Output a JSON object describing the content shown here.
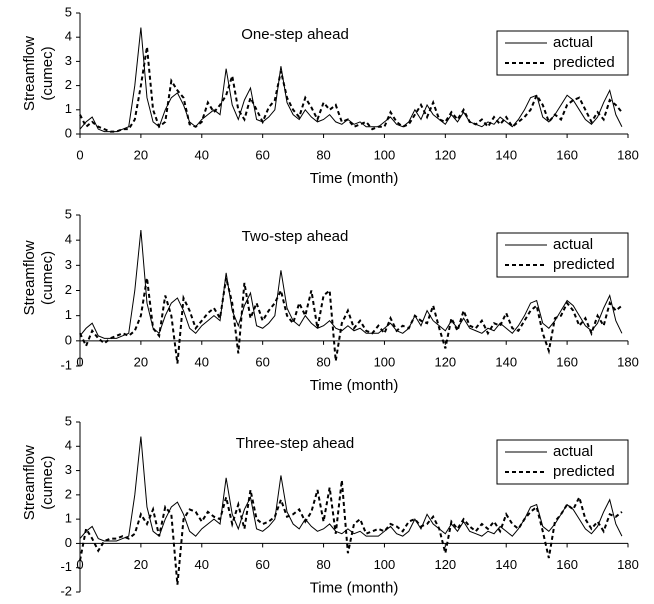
{
  "chart_data": [
    {
      "type": "line",
      "title": "One-step ahead",
      "x_label": "Time (month)",
      "y_label": [
        "Streamflow",
        "(cumec)"
      ],
      "x": [
        0,
        2,
        4,
        6,
        8,
        10,
        12,
        14,
        16,
        18,
        20,
        22,
        24,
        26,
        28,
        30,
        32,
        34,
        36,
        38,
        40,
        42,
        44,
        46,
        48,
        50,
        52,
        54,
        56,
        58,
        60,
        62,
        64,
        66,
        68,
        70,
        72,
        74,
        76,
        78,
        80,
        82,
        84,
        86,
        88,
        90,
        92,
        94,
        96,
        98,
        100,
        102,
        104,
        106,
        108,
        110,
        112,
        114,
        116,
        118,
        120,
        122,
        124,
        126,
        128,
        130,
        132,
        134,
        136,
        138,
        140,
        142,
        144,
        146,
        148,
        150,
        152,
        154,
        156,
        158,
        160,
        162,
        164,
        166,
        168,
        170,
        172,
        174,
        176,
        178
      ],
      "series": [
        {
          "name": "actual",
          "color": "#000000",
          "line_style": "solid",
          "values": [
            0.2,
            0.5,
            0.7,
            0.2,
            0.1,
            0.1,
            0.1,
            0.2,
            0.3,
            2.0,
            4.4,
            1.5,
            0.5,
            0.3,
            1.0,
            1.5,
            1.7,
            1.2,
            0.5,
            0.3,
            0.6,
            0.8,
            1.0,
            0.8,
            2.7,
            1.2,
            0.6,
            1.4,
            1.9,
            0.6,
            0.5,
            0.7,
            1.0,
            2.8,
            1.3,
            0.8,
            0.6,
            1.0,
            0.7,
            0.5,
            0.6,
            0.8,
            0.5,
            0.4,
            0.6,
            0.4,
            0.5,
            0.3,
            0.3,
            0.3,
            0.5,
            0.7,
            0.4,
            0.3,
            0.5,
            1.0,
            0.6,
            1.2,
            0.8,
            0.6,
            0.4,
            0.8,
            0.5,
            0.9,
            0.5,
            0.4,
            0.3,
            0.5,
            0.4,
            0.7,
            0.5,
            0.3,
            0.6,
            1.0,
            1.5,
            1.6,
            0.7,
            0.5,
            0.8,
            1.2,
            1.6,
            1.4,
            1.0,
            0.6,
            0.4,
            0.7,
            1.3,
            1.8,
            0.8,
            0.3
          ]
        },
        {
          "name": "predicted",
          "color": "#000000",
          "line_style": "dashed",
          "values": [
            0.8,
            0.3,
            0.5,
            0.3,
            0.2,
            0.1,
            0.1,
            0.2,
            0.2,
            0.6,
            2.0,
            3.6,
            1.0,
            0.3,
            0.5,
            2.2,
            1.8,
            1.5,
            0.4,
            0.3,
            0.5,
            1.3,
            0.9,
            1.2,
            1.6,
            2.4,
            1.0,
            0.6,
            1.5,
            1.0,
            0.5,
            1.1,
            1.4,
            2.6,
            1.5,
            1.0,
            0.7,
            1.5,
            1.1,
            0.6,
            1.3,
            1.0,
            1.2,
            0.5,
            0.6,
            0.3,
            0.4,
            0.5,
            0.2,
            0.3,
            0.3,
            0.9,
            0.5,
            0.3,
            0.4,
            0.8,
            1.2,
            0.7,
            1.3,
            0.6,
            0.5,
            0.9,
            0.6,
            1.0,
            0.5,
            0.4,
            0.6,
            0.3,
            0.7,
            0.4,
            0.7,
            0.3,
            0.5,
            0.7,
            1.0,
            1.6,
            1.2,
            0.5,
            0.8,
            0.6,
            1.2,
            1.4,
            1.5,
            1.0,
            0.5,
            0.9,
            0.6,
            1.4,
            1.2,
            0.9
          ]
        }
      ],
      "xlim": [
        0,
        180
      ],
      "xticks": [
        0,
        20,
        40,
        60,
        80,
        100,
        120,
        140,
        160,
        180
      ],
      "ylim": [
        0,
        5
      ],
      "yticks": [
        0,
        1,
        2,
        3,
        4,
        5
      ],
      "legend": "upper right"
    },
    {
      "type": "line",
      "title": "Two-step ahead",
      "x_label": "Time (month)",
      "y_label": [
        "Streamflow",
        "(cumec)"
      ],
      "x": [
        0,
        2,
        4,
        6,
        8,
        10,
        12,
        14,
        16,
        18,
        20,
        22,
        24,
        26,
        28,
        30,
        32,
        34,
        36,
        38,
        40,
        42,
        44,
        46,
        48,
        50,
        52,
        54,
        56,
        58,
        60,
        62,
        64,
        66,
        68,
        70,
        72,
        74,
        76,
        78,
        80,
        82,
        84,
        86,
        88,
        90,
        92,
        94,
        96,
        98,
        100,
        102,
        104,
        106,
        108,
        110,
        112,
        114,
        116,
        118,
        120,
        122,
        124,
        126,
        128,
        130,
        132,
        134,
        136,
        138,
        140,
        142,
        144,
        146,
        148,
        150,
        152,
        154,
        156,
        158,
        160,
        162,
        164,
        166,
        168,
        170,
        172,
        174,
        176,
        178
      ],
      "series": [
        {
          "name": "actual",
          "color": "#000000",
          "line_style": "solid",
          "values": [
            0.2,
            0.5,
            0.7,
            0.2,
            0.1,
            0.1,
            0.1,
            0.2,
            0.3,
            2.0,
            4.4,
            1.5,
            0.5,
            0.3,
            1.0,
            1.5,
            1.7,
            1.2,
            0.5,
            0.3,
            0.6,
            0.8,
            1.0,
            0.8,
            2.7,
            1.2,
            0.6,
            1.4,
            1.9,
            0.6,
            0.5,
            0.7,
            1.0,
            2.8,
            1.3,
            0.8,
            0.6,
            1.0,
            0.7,
            0.5,
            0.6,
            0.8,
            0.5,
            0.4,
            0.6,
            0.4,
            0.5,
            0.3,
            0.3,
            0.3,
            0.5,
            0.7,
            0.4,
            0.3,
            0.5,
            1.0,
            0.6,
            1.2,
            0.8,
            0.6,
            0.4,
            0.8,
            0.5,
            0.9,
            0.5,
            0.4,
            0.3,
            0.5,
            0.4,
            0.7,
            0.5,
            0.3,
            0.6,
            1.0,
            1.5,
            1.6,
            0.7,
            0.5,
            0.8,
            1.2,
            1.6,
            1.4,
            1.0,
            0.6,
            0.4,
            0.7,
            1.3,
            1.8,
            0.8,
            0.3
          ]
        },
        {
          "name": "predicted",
          "color": "#000000",
          "line_style": "dashed",
          "values": [
            0.3,
            -0.2,
            0.4,
            0.1,
            -0.1,
            0.1,
            0.2,
            0.3,
            0.2,
            0.4,
            1.0,
            2.5,
            0.5,
            0.2,
            1.8,
            1.0,
            -0.9,
            1.7,
            1.2,
            0.5,
            0.8,
            1.1,
            1.3,
            0.9,
            2.5,
            1.5,
            -0.5,
            2.3,
            0.9,
            1.5,
            0.8,
            1.2,
            1.5,
            2.0,
            1.0,
            0.7,
            1.5,
            1.0,
            2.0,
            0.5,
            1.8,
            2.0,
            -0.8,
            0.7,
            1.2,
            0.5,
            0.8,
            0.4,
            0.3,
            0.6,
            0.3,
            0.9,
            0.4,
            0.6,
            0.5,
            1.0,
            0.8,
            0.7,
            1.4,
            0.5,
            -0.3,
            0.9,
            0.4,
            1.2,
            0.6,
            0.5,
            0.8,
            0.3,
            0.7,
            0.6,
            1.1,
            0.5,
            0.4,
            0.8,
            1.2,
            1.4,
            0.3,
            -0.4,
            0.9,
            1.0,
            1.5,
            1.2,
            0.6,
            0.9,
            0.3,
            1.0,
            0.6,
            1.5,
            1.2,
            1.4
          ]
        }
      ],
      "xlim": [
        0,
        180
      ],
      "xticks": [
        0,
        20,
        40,
        60,
        80,
        100,
        120,
        140,
        160,
        180
      ],
      "ylim": [
        -1,
        5
      ],
      "yticks": [
        -1,
        0,
        1,
        2,
        3,
        4,
        5
      ],
      "legend": "upper right"
    },
    {
      "type": "line",
      "title": "Three-step ahead",
      "x_label": "Time (month)",
      "y_label": [
        "Streamflow",
        "(cumec)"
      ],
      "x": [
        0,
        2,
        4,
        6,
        8,
        10,
        12,
        14,
        16,
        18,
        20,
        22,
        24,
        26,
        28,
        30,
        32,
        34,
        36,
        38,
        40,
        42,
        44,
        46,
        48,
        50,
        52,
        54,
        56,
        58,
        60,
        62,
        64,
        66,
        68,
        70,
        72,
        74,
        76,
        78,
        80,
        82,
        84,
        86,
        88,
        90,
        92,
        94,
        96,
        98,
        100,
        102,
        104,
        106,
        108,
        110,
        112,
        114,
        116,
        118,
        120,
        122,
        124,
        126,
        128,
        130,
        132,
        134,
        136,
        138,
        140,
        142,
        144,
        146,
        148,
        150,
        152,
        154,
        156,
        158,
        160,
        162,
        164,
        166,
        168,
        170,
        172,
        174,
        176,
        178
      ],
      "series": [
        {
          "name": "actual",
          "color": "#000000",
          "line_style": "solid",
          "values": [
            0.2,
            0.5,
            0.7,
            0.2,
            0.1,
            0.1,
            0.1,
            0.2,
            0.3,
            2.0,
            4.4,
            1.5,
            0.5,
            0.3,
            1.0,
            1.5,
            1.7,
            1.2,
            0.5,
            0.3,
            0.6,
            0.8,
            1.0,
            0.8,
            2.7,
            1.2,
            0.6,
            1.4,
            1.9,
            0.6,
            0.5,
            0.7,
            1.0,
            2.8,
            1.3,
            0.8,
            0.6,
            1.0,
            0.7,
            0.5,
            0.6,
            0.8,
            0.5,
            0.4,
            0.6,
            0.4,
            0.5,
            0.3,
            0.3,
            0.3,
            0.5,
            0.7,
            0.4,
            0.3,
            0.5,
            1.0,
            0.6,
            1.2,
            0.8,
            0.6,
            0.4,
            0.8,
            0.5,
            0.9,
            0.5,
            0.4,
            0.3,
            0.5,
            0.4,
            0.7,
            0.5,
            0.3,
            0.6,
            1.0,
            1.5,
            1.6,
            0.7,
            0.5,
            0.8,
            1.2,
            1.6,
            1.4,
            1.0,
            0.6,
            0.4,
            0.7,
            1.3,
            1.8,
            0.8,
            0.3
          ]
        },
        {
          "name": "predicted",
          "color": "#000000",
          "line_style": "dashed",
          "values": [
            -0.7,
            0.6,
            0.2,
            -0.3,
            0.1,
            0.2,
            0.2,
            0.3,
            0.2,
            0.4,
            1.2,
            0.8,
            1.4,
            0.3,
            1.5,
            1.2,
            -1.7,
            1.0,
            1.4,
            1.3,
            0.9,
            1.3,
            1.1,
            1.0,
            1.9,
            0.8,
            1.6,
            0.6,
            2.2,
            1.0,
            0.8,
            0.9,
            1.1,
            1.8,
            1.1,
            1.2,
            1.4,
            0.9,
            1.3,
            2.2,
            0.9,
            2.3,
            0.4,
            2.6,
            -0.4,
            0.8,
            1.0,
            0.4,
            0.5,
            0.6,
            0.5,
            0.8,
            0.7,
            0.5,
            0.9,
            1.0,
            0.7,
            0.8,
            1.1,
            0.6,
            -0.4,
            0.9,
            0.6,
            1.0,
            0.7,
            0.5,
            0.8,
            0.6,
            0.9,
            0.5,
            1.2,
            0.8,
            0.6,
            1.0,
            1.3,
            1.5,
            0.5,
            -0.6,
            0.9,
            1.2,
            1.6,
            1.4,
            1.9,
            1.0,
            0.6,
            0.9,
            0.5,
            1.2,
            1.1,
            1.3
          ]
        }
      ],
      "xlim": [
        0,
        180
      ],
      "xticks": [
        0,
        20,
        40,
        60,
        80,
        100,
        120,
        140,
        160,
        180
      ],
      "ylim": [
        -2,
        5
      ],
      "yticks": [
        -2,
        -1,
        0,
        1,
        2,
        3,
        4,
        5
      ],
      "legend": "upper right"
    }
  ]
}
